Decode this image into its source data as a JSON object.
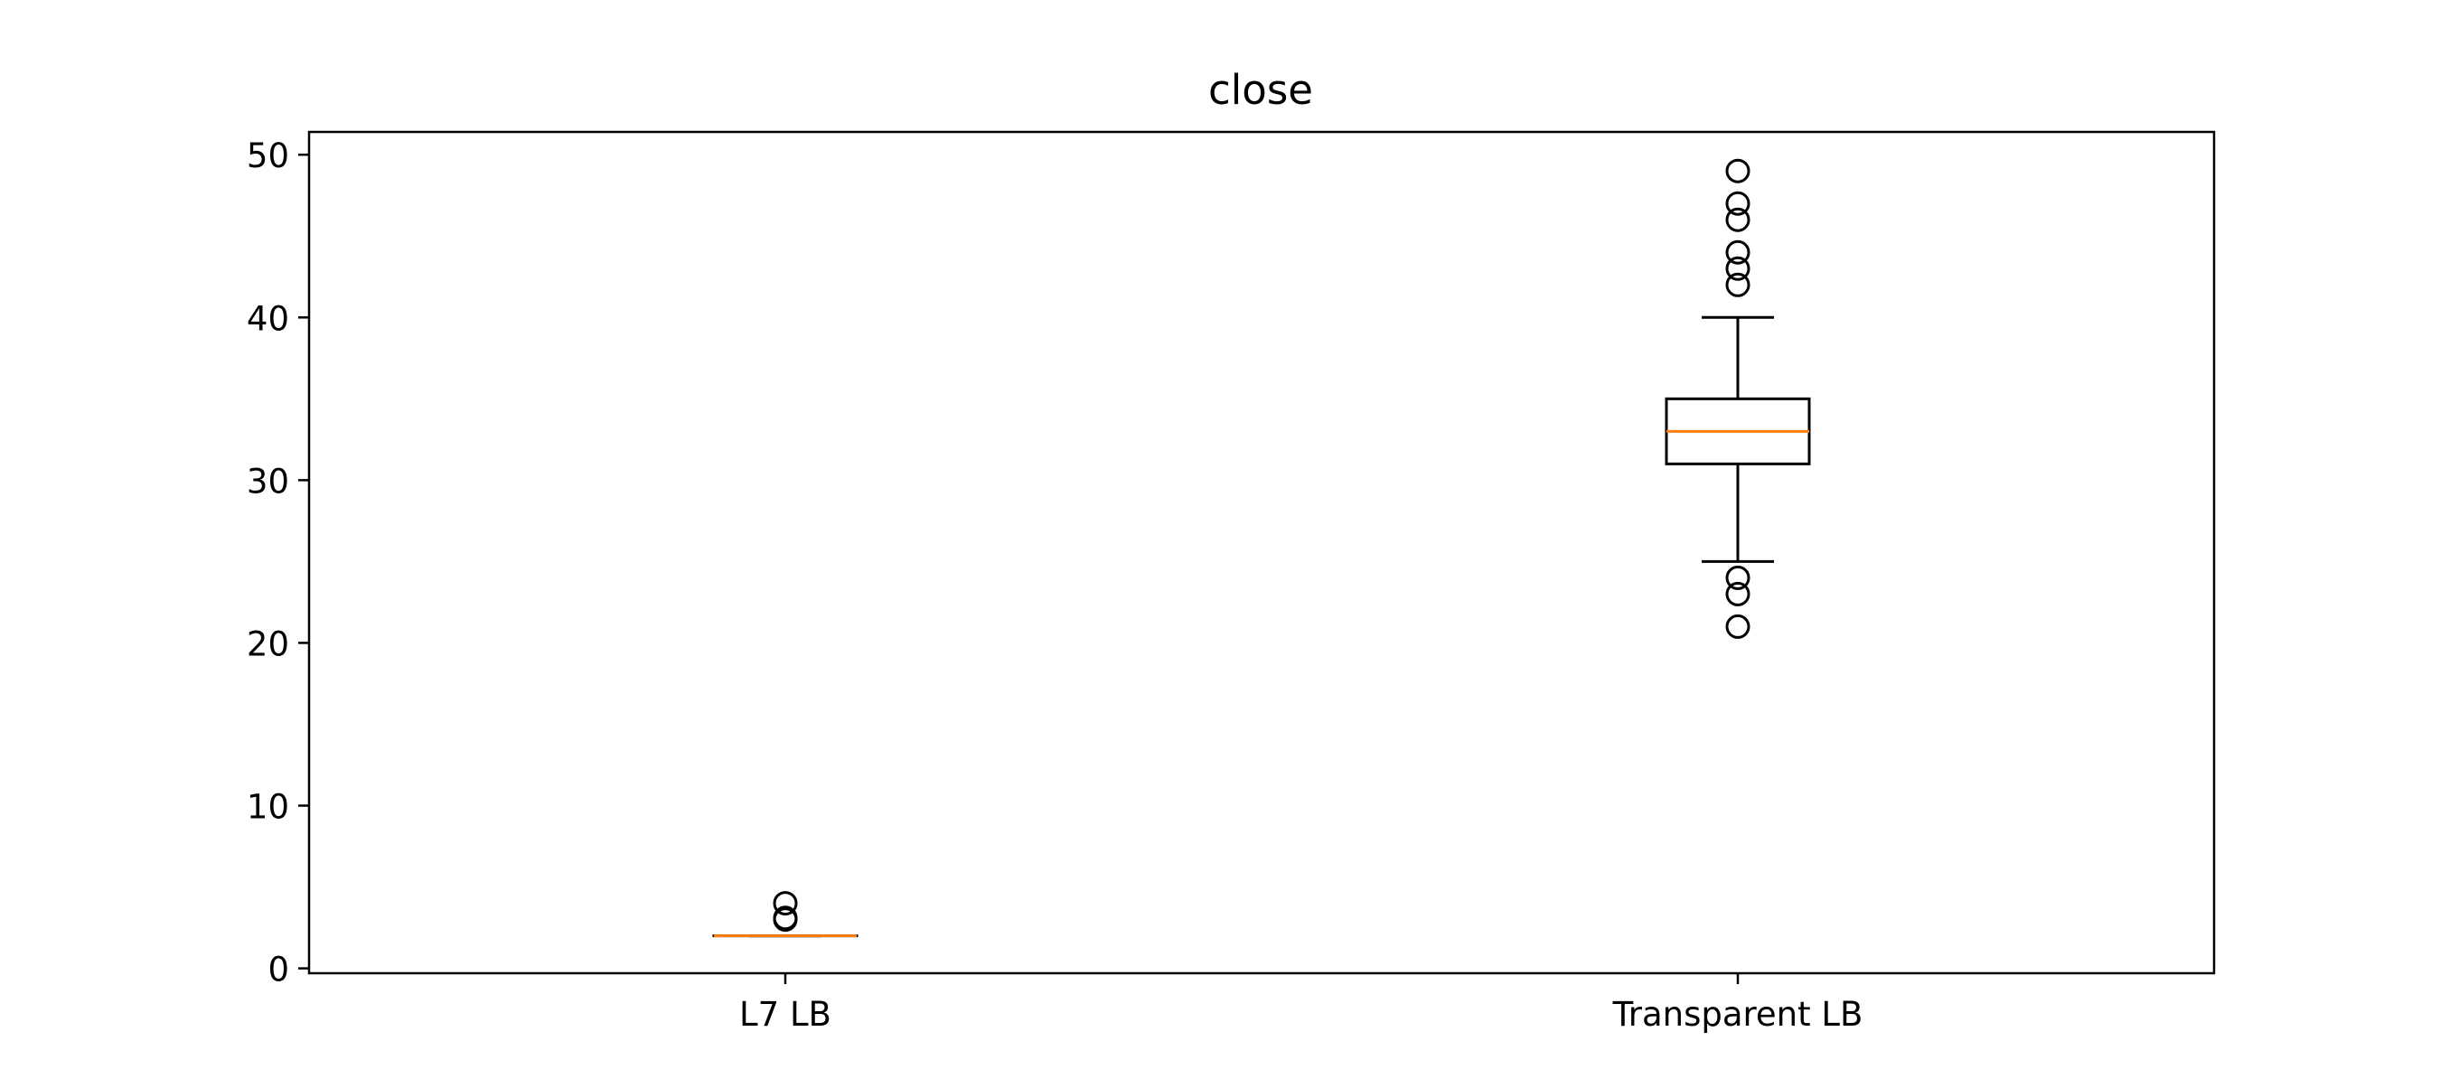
{
  "chart_data": {
    "type": "box",
    "title": "close",
    "xlabel": "",
    "ylabel": "",
    "categories": [
      "L7 LB",
      "Transparent LB"
    ],
    "ylim": [
      -0.3,
      51.4
    ],
    "yticks": [
      0,
      10,
      20,
      30,
      40,
      50
    ],
    "grid": false,
    "boxes": [
      {
        "label": "L7 LB",
        "whisker_low": 2,
        "q1": 2,
        "median": 2,
        "q3": 2,
        "whisker_high": 2,
        "outliers": [
          3,
          3.1,
          4
        ]
      },
      {
        "label": "Transparent LB",
        "whisker_low": 25,
        "q1": 31,
        "median": 33,
        "q3": 35,
        "whisker_high": 40,
        "outliers": [
          21,
          23,
          24,
          42,
          43,
          44,
          46,
          47,
          49
        ]
      }
    ],
    "colors": {
      "box": "#000000",
      "median": "#ff7f0e",
      "outlier": "#000000"
    }
  }
}
